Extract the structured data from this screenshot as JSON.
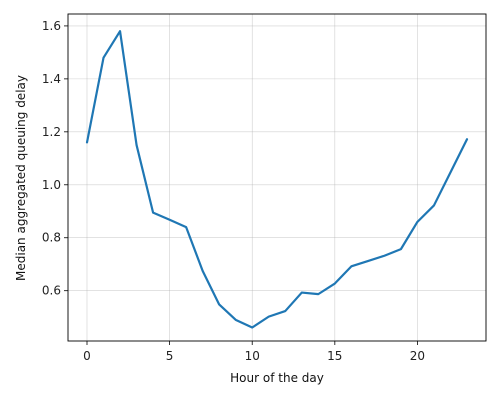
{
  "chart_data": {
    "type": "line",
    "title": "",
    "xlabel": "Hour of the day",
    "ylabel": "Median aggregated queuing delay",
    "xlim": [
      -1.15,
      24.15
    ],
    "ylim": [
      0.41,
      1.645
    ],
    "xticks": [
      0,
      5,
      10,
      15,
      20
    ],
    "yticks": [
      0.6,
      0.8,
      1.0,
      1.2,
      1.4,
      1.6
    ],
    "ytick_labels": [
      "0.6",
      "0.8",
      "1.0",
      "1.2",
      "1.4",
      "1.6"
    ],
    "grid": true,
    "legend": "none",
    "series": [
      {
        "color": "#1f77b4",
        "x": [
          0,
          1,
          2,
          3,
          4,
          5,
          6,
          7,
          8,
          9,
          10,
          11,
          12,
          13,
          14,
          15,
          16,
          17,
          18,
          19,
          20,
          21,
          22,
          23
        ],
        "values": [
          1.16,
          1.48,
          1.58,
          1.15,
          0.895,
          0.868,
          0.84,
          0.675,
          0.548,
          0.49,
          0.461,
          0.502,
          0.523,
          0.593,
          0.587,
          0.627,
          0.692,
          0.712,
          0.732,
          0.757,
          0.86,
          0.922,
          1.047,
          1.172
        ]
      }
    ]
  }
}
